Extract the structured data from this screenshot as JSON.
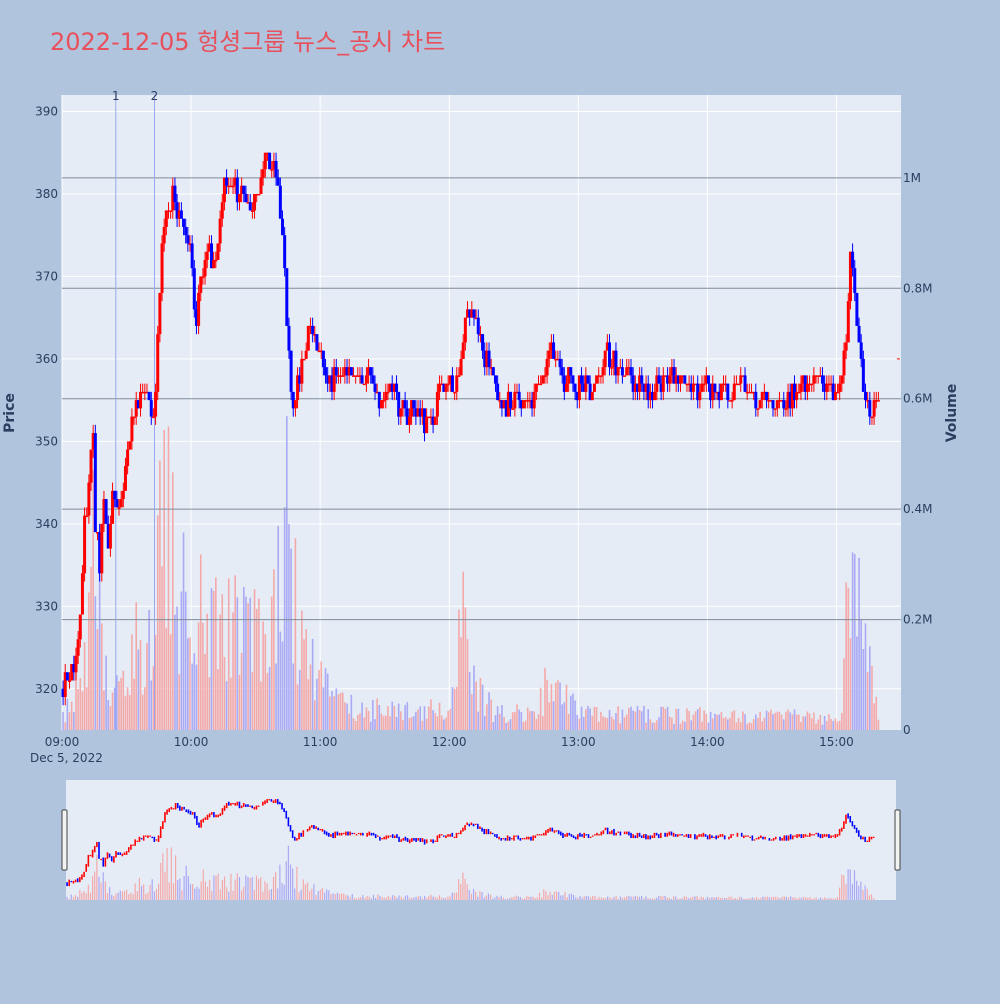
{
  "title": "2022-12-05 헝셩그룹 뉴스_공시 차트",
  "colors": {
    "page_bg": "#b0c4de",
    "plot_bg": "#e5ecf6",
    "title": "#e8505b",
    "up": "#ff0000",
    "down": "#0000ff",
    "up_volume": "#f4a9a9",
    "down_volume": "#a9a9f4",
    "axis_text": "#2a3f5f",
    "grid": "#ffffff",
    "volume_grid": "#7f8c9a",
    "marker_line": "#9aa7f0"
  },
  "chart_data": {
    "type": "candlestick",
    "date_label": "Dec 5, 2022",
    "x_ticks": [
      "09:00",
      "10:00",
      "11:00",
      "12:00",
      "13:00",
      "14:00",
      "15:00"
    ],
    "x_range": [
      "09:00",
      "15:30"
    ],
    "y_label": "Price",
    "y_ticks": [
      320,
      330,
      340,
      350,
      360,
      370,
      380,
      390
    ],
    "y_range": [
      315,
      392
    ],
    "y2_label": "Volume",
    "y2_ticks": [
      {
        "value": 0,
        "label": "0"
      },
      {
        "value": 200000,
        "label": "0.2M"
      },
      {
        "value": 400000,
        "label": "0.4M"
      },
      {
        "value": 600000,
        "label": "0.6M"
      },
      {
        "value": 800000,
        "label": "0.8M"
      },
      {
        "value": 1000000,
        "label": "1M"
      }
    ],
    "y2_range": [
      0,
      1150000
    ],
    "news_markers": [
      {
        "label": "1",
        "time": "09:25"
      },
      {
        "label": "2",
        "time": "09:43"
      }
    ],
    "price_path": [
      [
        "09:00",
        320
      ],
      [
        "09:03",
        322
      ],
      [
        "09:06",
        324
      ],
      [
        "09:08",
        330
      ],
      [
        "09:10",
        340
      ],
      [
        "09:12",
        345
      ],
      [
        "09:14",
        352
      ],
      [
        "09:15",
        340
      ],
      [
        "09:17",
        335
      ],
      [
        "09:19",
        342
      ],
      [
        "09:21",
        338
      ],
      [
        "09:23",
        343
      ],
      [
        "09:25",
        342
      ],
      [
        "09:28",
        345
      ],
      [
        "09:31",
        350
      ],
      [
        "09:34",
        356
      ],
      [
        "09:37",
        355
      ],
      [
        "09:40",
        355
      ],
      [
        "09:42",
        352
      ],
      [
        "09:44",
        362
      ],
      [
        "09:46",
        375
      ],
      [
        "09:48",
        378
      ],
      [
        "09:51",
        380
      ],
      [
        "09:54",
        377
      ],
      [
        "09:57",
        375
      ],
      [
        "10:00",
        372
      ],
      [
        "10:02",
        363
      ],
      [
        "10:04",
        370
      ],
      [
        "10:06",
        372
      ],
      [
        "10:08",
        373
      ],
      [
        "10:10",
        371
      ],
      [
        "10:12",
        375
      ],
      [
        "10:14",
        379
      ],
      [
        "10:16",
        382
      ],
      [
        "10:20",
        381
      ],
      [
        "10:24",
        380
      ],
      [
        "10:27",
        378
      ],
      [
        "10:30",
        381
      ],
      [
        "10:33",
        383
      ],
      [
        "10:35",
        384
      ],
      [
        "10:37",
        383
      ],
      [
        "10:39",
        382
      ],
      [
        "10:41",
        378
      ],
      [
        "10:43",
        370
      ],
      [
        "10:45",
        360
      ],
      [
        "10:47",
        355
      ],
      [
        "10:50",
        358
      ],
      [
        "10:53",
        362
      ],
      [
        "10:56",
        364
      ],
      [
        "11:00",
        360
      ],
      [
        "11:03",
        357
      ],
      [
        "11:06",
        358
      ],
      [
        "11:10",
        359
      ],
      [
        "11:13",
        358
      ],
      [
        "11:16",
        357
      ],
      [
        "11:20",
        358
      ],
      [
        "11:23",
        357
      ],
      [
        "11:26",
        355
      ],
      [
        "11:30",
        356
      ],
      [
        "11:33",
        357
      ],
      [
        "11:36",
        354
      ],
      [
        "11:40",
        353
      ],
      [
        "11:43",
        354
      ],
      [
        "11:46",
        353
      ],
      [
        "11:49",
        352
      ],
      [
        "11:52",
        353
      ],
      [
        "11:55",
        356
      ],
      [
        "11:58",
        357
      ],
      [
        "12:01",
        356
      ],
      [
        "12:04",
        358
      ],
      [
        "12:06",
        362
      ],
      [
        "12:08",
        365
      ],
      [
        "12:11",
        364
      ],
      [
        "12:14",
        362
      ],
      [
        "12:17",
        360
      ],
      [
        "12:20",
        357
      ],
      [
        "12:23",
        354
      ],
      [
        "12:26",
        354
      ],
      [
        "12:30",
        355
      ],
      [
        "12:33",
        354
      ],
      [
        "12:36",
        355
      ],
      [
        "12:40",
        356
      ],
      [
        "12:43",
        358
      ],
      [
        "12:46",
        362
      ],
      [
        "12:49",
        360
      ],
      [
        "12:52",
        357
      ],
      [
        "12:55",
        358
      ],
      [
        "12:58",
        356
      ],
      [
        "13:01",
        357
      ],
      [
        "13:04",
        356
      ],
      [
        "13:07",
        356
      ],
      [
        "13:10",
        358
      ],
      [
        "13:13",
        361
      ],
      [
        "13:16",
        360
      ],
      [
        "13:19",
        358
      ],
      [
        "13:22",
        358
      ],
      [
        "13:26",
        357
      ],
      [
        "13:30",
        357
      ],
      [
        "13:34",
        356
      ],
      [
        "13:38",
        357
      ],
      [
        "13:42",
        357
      ],
      [
        "13:46",
        358
      ],
      [
        "13:50",
        357
      ],
      [
        "13:54",
        356
      ],
      [
        "13:58",
        356
      ],
      [
        "14:02",
        357
      ],
      [
        "14:06",
        356
      ],
      [
        "14:10",
        356
      ],
      [
        "14:14",
        357
      ],
      [
        "14:18",
        356
      ],
      [
        "14:22",
        355
      ],
      [
        "14:26",
        355
      ],
      [
        "14:30",
        354
      ],
      [
        "14:34",
        354
      ],
      [
        "14:38",
        355
      ],
      [
        "14:42",
        356
      ],
      [
        "14:46",
        357
      ],
      [
        "14:50",
        358
      ],
      [
        "14:54",
        357
      ],
      [
        "14:58",
        356
      ],
      [
        "15:02",
        357
      ],
      [
        "15:04",
        362
      ],
      [
        "15:06",
        372
      ],
      [
        "15:08",
        368
      ],
      [
        "15:10",
        362
      ],
      [
        "15:12",
        356
      ],
      [
        "15:14",
        355
      ],
      [
        "15:16",
        354
      ],
      [
        "15:19",
        355
      ]
    ],
    "volume_profile": [
      [
        "09:00",
        30000
      ],
      [
        "09:05",
        60000
      ],
      [
        "09:10",
        130000
      ],
      [
        "09:14",
        330000
      ],
      [
        "09:18",
        180000
      ],
      [
        "09:22",
        90000
      ],
      [
        "09:26",
        70000
      ],
      [
        "09:30",
        130000
      ],
      [
        "09:34",
        170000
      ],
      [
        "09:38",
        120000
      ],
      [
        "09:42",
        200000
      ],
      [
        "09:45",
        450000
      ],
      [
        "09:48",
        520000
      ],
      [
        "09:51",
        350000
      ],
      [
        "09:55",
        260000
      ],
      [
        "10:00",
        330000
      ],
      [
        "10:04",
        240000
      ],
      [
        "10:08",
        150000
      ],
      [
        "10:12",
        260000
      ],
      [
        "10:16",
        180000
      ],
      [
        "10:20",
        230000
      ],
      [
        "10:25",
        170000
      ],
      [
        "10:30",
        180000
      ],
      [
        "10:35",
        130000
      ],
      [
        "10:40",
        320000
      ],
      [
        "10:44",
        420000
      ],
      [
        "10:48",
        240000
      ],
      [
        "10:52",
        140000
      ],
      [
        "10:58",
        110000
      ],
      [
        "11:05",
        70000
      ],
      [
        "11:15",
        45000
      ],
      [
        "11:30",
        38000
      ],
      [
        "11:45",
        35000
      ],
      [
        "12:00",
        45000
      ],
      [
        "12:06",
        210000
      ],
      [
        "12:10",
        90000
      ],
      [
        "12:20",
        38000
      ],
      [
        "12:40",
        30000
      ],
      [
        "12:45",
        90000
      ],
      [
        "13:00",
        35000
      ],
      [
        "13:20",
        30000
      ],
      [
        "13:40",
        32000
      ],
      [
        "14:00",
        28000
      ],
      [
        "14:20",
        25000
      ],
      [
        "14:40",
        28000
      ],
      [
        "14:55",
        25000
      ],
      [
        "15:02",
        30000
      ],
      [
        "15:05",
        320000
      ],
      [
        "15:08",
        280000
      ],
      [
        "15:12",
        160000
      ],
      [
        "15:16",
        90000
      ],
      [
        "15:20",
        40000
      ],
      [
        "15:30",
        20000
      ]
    ]
  }
}
